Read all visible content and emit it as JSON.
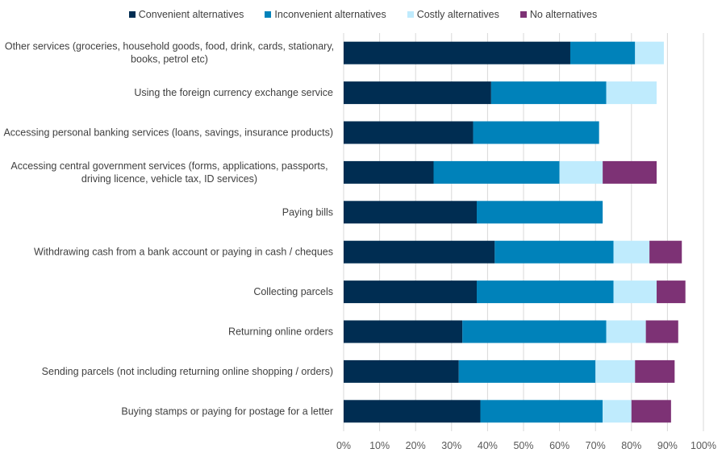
{
  "chart_data": {
    "type": "bar",
    "orientation": "horizontal",
    "stacked": true,
    "title": "",
    "xlabel": "",
    "ylabel": "",
    "xlim": [
      0,
      100
    ],
    "x_ticks": [
      "0%",
      "10%",
      "20%",
      "30%",
      "40%",
      "50%",
      "60%",
      "70%",
      "80%",
      "90%",
      "100%"
    ],
    "grid": "vertical",
    "legend_position": "top",
    "categories": [
      [
        "Other services (groceries, household goods, food, drink, cards, stationary,",
        "books, petrol etc)"
      ],
      [
        "Using the foreign currency exchange service"
      ],
      [
        "Accessing personal banking services (loans, savings, insurance products)"
      ],
      [
        "Accessing central government services (forms, applications, passports,",
        "driving licence, vehicle tax, ID services)"
      ],
      [
        "Paying bills"
      ],
      [
        "Withdrawing cash from a bank account or paying in cash / cheques"
      ],
      [
        "Collecting parcels"
      ],
      [
        "Returning online orders"
      ],
      [
        "Sending parcels (not including returning online shopping / orders)"
      ],
      [
        "Buying stamps or paying for postage for a letter"
      ]
    ],
    "series": [
      {
        "name": "Convenient alternatives",
        "color": "#002d52",
        "values": [
          63,
          41,
          36,
          25,
          37,
          42,
          37,
          33,
          32,
          38
        ]
      },
      {
        "name": "Inconvenient alternatives",
        "color": "#0082ba",
        "values": [
          18,
          32,
          35,
          35,
          35,
          33,
          38,
          40,
          38,
          34
        ]
      },
      {
        "name": "Costly alternatives",
        "color": "#bfebfd",
        "values": [
          8,
          14,
          0,
          12,
          0,
          10,
          12,
          11,
          11,
          8
        ]
      },
      {
        "name": "No alternatives",
        "color": "#7d3275",
        "values": [
          0,
          0,
          0,
          15,
          0,
          9,
          8,
          9,
          11,
          11
        ]
      }
    ]
  }
}
